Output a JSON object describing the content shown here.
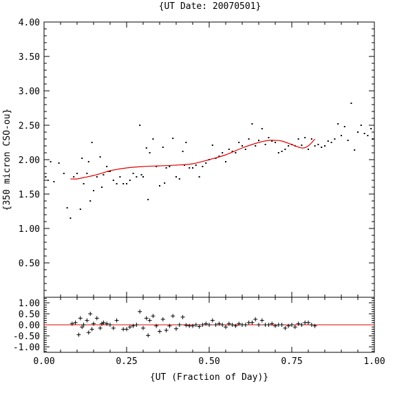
{
  "chart_data": [
    {
      "type": "scatter",
      "title": "{UT Date: 20070501}",
      "ylabel": "{350 micron CSO-ou}",
      "xlim": [
        0.0,
        1.0
      ],
      "ylim": [
        0.0,
        4.0
      ],
      "yticks": [
        "0.50",
        "1.00",
        "1.50",
        "2.00",
        "2.50",
        "3.00",
        "3.50",
        "4.00"
      ],
      "ytick_values": [
        0.5,
        1.0,
        1.5,
        2.0,
        2.5,
        3.0,
        3.5,
        4.0
      ],
      "grid": false,
      "series": [
        {
          "kind": "points",
          "color": "#000000",
          "x": [
            0.005,
            0.012,
            0.02,
            0.03,
            0.045,
            0.06,
            0.07,
            0.08,
            0.09,
            0.1,
            0.11,
            0.115,
            0.12,
            0.13,
            0.135,
            0.14,
            0.145,
            0.15,
            0.16,
            0.17,
            0.175,
            0.18,
            0.19,
            0.195,
            0.2,
            0.21,
            0.22,
            0.23,
            0.24,
            0.25,
            0.26,
            0.27,
            0.28,
            0.29,
            0.295,
            0.3,
            0.31,
            0.315,
            0.32,
            0.33,
            0.34,
            0.35,
            0.36,
            0.365,
            0.37,
            0.38,
            0.39,
            0.4,
            0.41,
            0.42,
            0.425,
            0.43,
            0.44,
            0.45,
            0.46,
            0.47,
            0.48,
            0.49,
            0.5,
            0.51,
            0.52,
            0.53,
            0.54,
            0.55,
            0.56,
            0.57,
            0.58,
            0.59,
            0.6,
            0.61,
            0.62,
            0.63,
            0.64,
            0.65,
            0.66,
            0.67,
            0.68,
            0.69,
            0.7,
            0.71,
            0.72,
            0.73,
            0.74,
            0.75,
            0.76,
            0.77,
            0.78,
            0.79,
            0.8,
            0.81,
            0.82,
            0.83,
            0.84,
            0.85,
            0.86,
            0.87,
            0.88,
            0.89,
            0.9,
            0.91,
            0.92,
            0.93,
            0.94,
            0.95,
            0.96,
            0.97,
            0.98,
            0.99,
            0.995
          ],
          "y": [
            1.75,
            1.7,
            1.97,
            1.68,
            1.95,
            1.8,
            1.3,
            1.15,
            1.75,
            1.8,
            1.28,
            2.02,
            1.65,
            1.8,
            1.97,
            1.4,
            2.25,
            1.55,
            1.75,
            2.04,
            1.6,
            1.78,
            1.9,
            1.83,
            1.83,
            1.7,
            1.65,
            1.75,
            1.65,
            1.65,
            1.7,
            1.8,
            1.75,
            2.5,
            1.78,
            1.75,
            2.17,
            1.42,
            2.1,
            2.3,
            1.9,
            1.62,
            2.18,
            1.66,
            1.88,
            1.9,
            2.31,
            1.75,
            1.72,
            2.12,
            1.92,
            2.25,
            1.88,
            1.88,
            1.92,
            1.75,
            1.9,
            1.95,
            2.0,
            2.21,
            2.02,
            2.05,
            2.1,
            1.97,
            2.15,
            2.12,
            2.1,
            2.25,
            2.2,
            2.15,
            2.3,
            2.52,
            2.2,
            2.28,
            2.45,
            2.22,
            2.32,
            2.27,
            2.25,
            2.1,
            2.12,
            2.15,
            2.2,
            2.22,
            2.2,
            2.3,
            2.21,
            2.32,
            2.15,
            2.3,
            2.2,
            2.22,
            2.18,
            2.2,
            2.27,
            2.25,
            2.3,
            2.52,
            2.35,
            2.48,
            2.28,
            2.82,
            2.14,
            2.4,
            2.5,
            2.38,
            2.35,
            2.45,
            2.3
          ]
        },
        {
          "kind": "fit",
          "color": "#e00000",
          "x": [
            0.08,
            0.1,
            0.12,
            0.15,
            0.18,
            0.2,
            0.25,
            0.3,
            0.35,
            0.4,
            0.45,
            0.5,
            0.55,
            0.6,
            0.65,
            0.68,
            0.7,
            0.72,
            0.75,
            0.78,
            0.8,
            0.82
          ],
          "y": [
            1.72,
            1.72,
            1.74,
            1.77,
            1.81,
            1.84,
            1.88,
            1.9,
            1.91,
            1.92,
            1.94,
            2.0,
            2.07,
            2.17,
            2.25,
            2.28,
            2.28,
            2.27,
            2.22,
            2.17,
            2.2,
            2.3
          ]
        }
      ]
    },
    {
      "type": "scatter",
      "xlabel": "{UT (Fraction of Day)}",
      "xlim": [
        0.0,
        1.0
      ],
      "ylim": [
        -1.25,
        1.25
      ],
      "xticks": [
        "0.00",
        "0.25",
        "0.50",
        "0.75",
        "1.00"
      ],
      "xtick_values": [
        0.0,
        0.25,
        0.5,
        0.75,
        1.0
      ],
      "yticks": [
        "-1.00",
        "-0.50",
        "0.00",
        "0.50",
        "1.00"
      ],
      "ytick_values": [
        -1.0,
        -0.5,
        0.0,
        0.5,
        1.0
      ],
      "zero_line_color": "#e00000",
      "residuals": {
        "x": [
          0.085,
          0.095,
          0.105,
          0.11,
          0.115,
          0.12,
          0.13,
          0.135,
          0.14,
          0.145,
          0.15,
          0.16,
          0.17,
          0.175,
          0.18,
          0.19,
          0.2,
          0.21,
          0.22,
          0.24,
          0.25,
          0.26,
          0.27,
          0.28,
          0.29,
          0.3,
          0.31,
          0.315,
          0.32,
          0.33,
          0.34,
          0.35,
          0.36,
          0.37,
          0.38,
          0.39,
          0.4,
          0.41,
          0.42,
          0.43,
          0.44,
          0.45,
          0.46,
          0.47,
          0.48,
          0.49,
          0.5,
          0.51,
          0.52,
          0.53,
          0.54,
          0.55,
          0.56,
          0.57,
          0.58,
          0.59,
          0.6,
          0.61,
          0.62,
          0.63,
          0.64,
          0.65,
          0.66,
          0.67,
          0.68,
          0.69,
          0.7,
          0.71,
          0.72,
          0.73,
          0.74,
          0.75,
          0.76,
          0.77,
          0.78,
          0.79,
          0.8,
          0.81,
          0.82
        ],
        "y": [
          0.05,
          0.1,
          -0.45,
          0.3,
          -0.1,
          0.0,
          0.2,
          -0.35,
          0.5,
          -0.2,
          0.05,
          0.3,
          -0.15,
          0.05,
          0.1,
          0.05,
          0.0,
          -0.15,
          0.2,
          -0.2,
          -0.2,
          -0.1,
          -0.05,
          0.0,
          0.6,
          -0.15,
          0.3,
          -0.48,
          0.2,
          0.4,
          -0.05,
          -0.3,
          0.25,
          -0.25,
          -0.05,
          0.4,
          -0.18,
          0.0,
          0.35,
          -0.02,
          -0.05,
          -0.05,
          0.0,
          -0.08,
          0.0,
          0.05,
          0.0,
          0.2,
          0.0,
          0.05,
          0.0,
          -0.1,
          0.05,
          0.0,
          -0.05,
          0.05,
          0.0,
          0.0,
          0.1,
          0.1,
          0.25,
          0.0,
          0.2,
          0.0,
          0.0,
          0.05,
          -0.05,
          0.0,
          0.0,
          -0.15,
          -0.05,
          0.0,
          -0.1,
          0.05,
          0.0,
          0.1,
          0.1,
          0.0,
          -0.05
        ]
      }
    }
  ]
}
